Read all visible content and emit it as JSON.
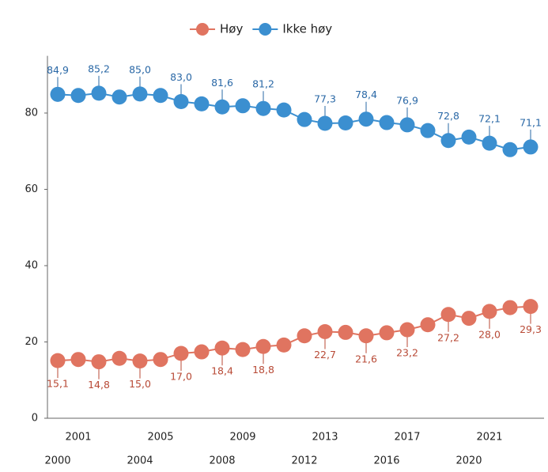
{
  "chart_data": {
    "type": "line",
    "categories": [
      "2000",
      "2001",
      null,
      null,
      "2004",
      "2005",
      null,
      null,
      "2008",
      "2009",
      null,
      null,
      "2012",
      "2013",
      null,
      null,
      "2016",
      "2017",
      null,
      null,
      "2020",
      "2021",
      null,
      null
    ],
    "series": [
      {
        "name": "Høy",
        "color": "#e07460",
        "label_color": "#b84a36",
        "values": [
          15.1,
          15.4,
          14.8,
          15.7,
          15.0,
          15.4,
          17.0,
          17.4,
          18.4,
          18.0,
          18.8,
          19.2,
          21.6,
          22.7,
          22.5,
          21.6,
          22.4,
          23.2,
          24.5,
          27.2,
          26.2,
          28.0,
          29.0,
          29.3
        ],
        "value_labels": [
          "15,1",
          null,
          "14,8",
          null,
          "15,0",
          null,
          "17,0",
          null,
          "18,4",
          null,
          "18,8",
          null,
          null,
          "22,7",
          null,
          "21,6",
          null,
          "23,2",
          null,
          "27,2",
          null,
          "28,0",
          null,
          "29,3"
        ]
      },
      {
        "name": "Ikke høy",
        "color": "#3b8fd0",
        "label_color": "#2a68a6",
        "values": [
          84.9,
          84.6,
          85.2,
          84.2,
          85.0,
          84.6,
          83.0,
          82.4,
          81.6,
          81.9,
          81.2,
          80.8,
          78.3,
          77.3,
          77.4,
          78.4,
          77.5,
          76.9,
          75.4,
          72.8,
          73.7,
          72.1,
          70.4,
          71.1
        ],
        "value_labels": [
          "84,9",
          null,
          "85,2",
          null,
          "85,0",
          null,
          "83,0",
          null,
          "81,6",
          null,
          "81,2",
          null,
          null,
          "77,3",
          null,
          "78,4",
          null,
          "76,9",
          null,
          "72,8",
          null,
          "72,1",
          null,
          "71,1"
        ]
      }
    ],
    "ylim": [
      0,
      95
    ],
    "yticks": [
      0,
      20,
      40,
      60,
      80
    ],
    "legend": "top"
  }
}
